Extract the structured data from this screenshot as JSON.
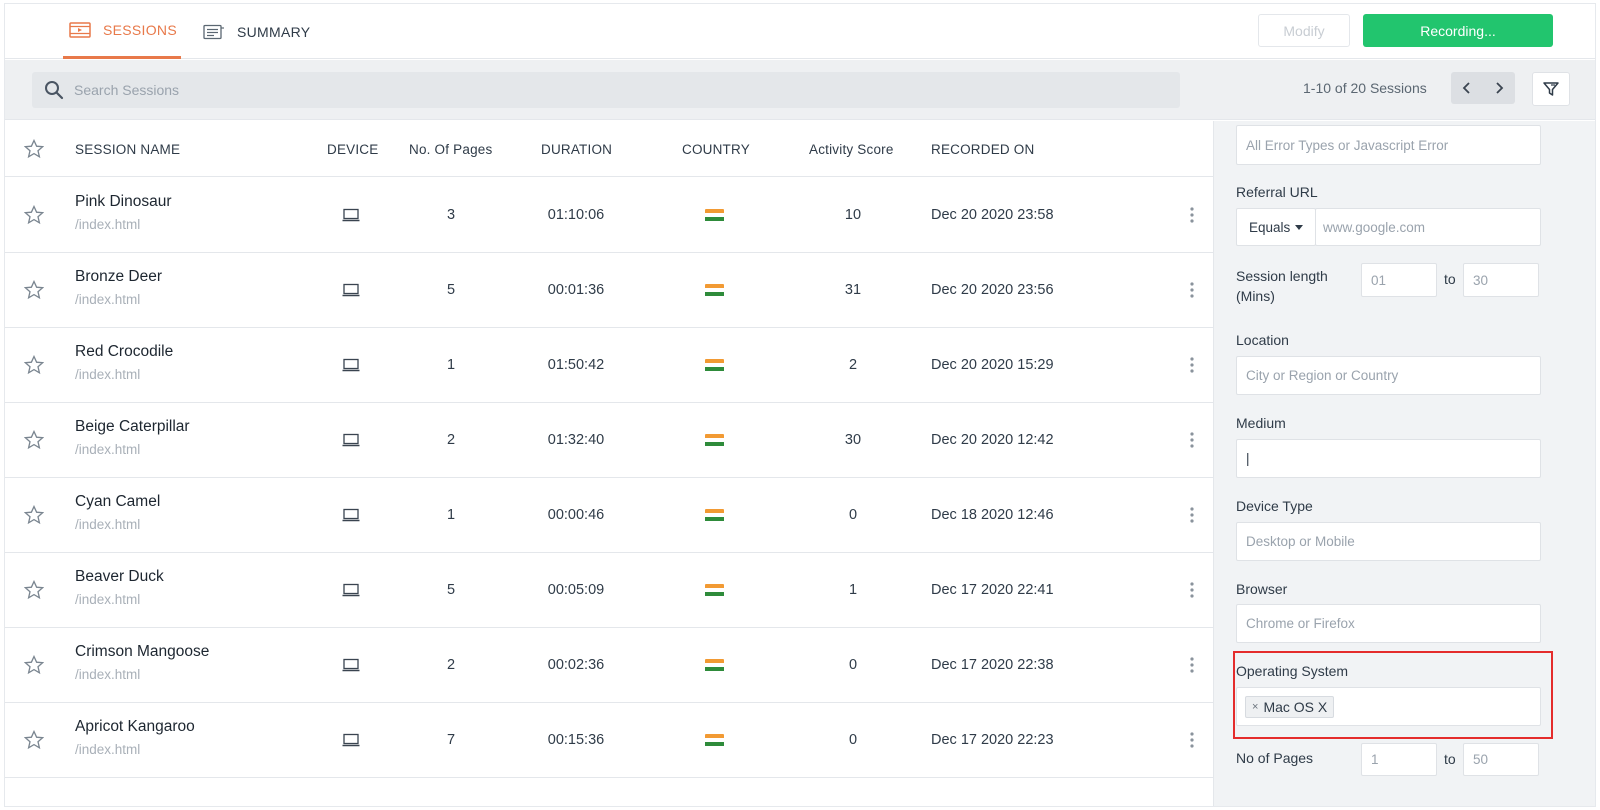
{
  "nav": {
    "tabs": [
      {
        "label": "SESSIONS",
        "icon": "video-icon",
        "active": true
      },
      {
        "label": "SUMMARY",
        "icon": "list-icon",
        "active": false
      }
    ],
    "modify_label": "Modify",
    "record_label": "Recording..."
  },
  "search": {
    "placeholder": "Search Sessions",
    "pager_text": "1-10 of 20 Sessions"
  },
  "table": {
    "columns": [
      "SESSION NAME",
      "DEVICE",
      "No. Of Pages",
      "DURATION",
      "COUNTRY",
      "Activity Score",
      "RECORDED ON"
    ],
    "rows": [
      {
        "name": "Pink Dinosaur",
        "path": "/index.html",
        "device": "desktop-icon",
        "pages": "3",
        "duration": "01:10:06",
        "country": "india-flag",
        "score": "10",
        "recorded": "Dec 20 2020 23:58"
      },
      {
        "name": "Bronze Deer",
        "path": "/index.html",
        "device": "desktop-icon",
        "pages": "5",
        "duration": "00:01:36",
        "country": "india-flag",
        "score": "31",
        "recorded": "Dec 20 2020 23:56"
      },
      {
        "name": "Red Crocodile",
        "path": "/index.html",
        "device": "desktop-icon",
        "pages": "1",
        "duration": "01:50:42",
        "country": "india-flag",
        "score": "2",
        "recorded": "Dec 20 2020 15:29"
      },
      {
        "name": "Beige Caterpillar",
        "path": "/index.html",
        "device": "desktop-icon",
        "pages": "2",
        "duration": "01:32:40",
        "country": "india-flag",
        "score": "30",
        "recorded": "Dec 20 2020 12:42"
      },
      {
        "name": "Cyan Camel",
        "path": "/index.html",
        "device": "desktop-icon",
        "pages": "1",
        "duration": "00:00:46",
        "country": "india-flag",
        "score": "0",
        "recorded": "Dec 18 2020 12:46"
      },
      {
        "name": "Beaver Duck",
        "path": "/index.html",
        "device": "desktop-icon",
        "pages": "5",
        "duration": "00:05:09",
        "country": "india-flag",
        "score": "1",
        "recorded": "Dec 17 2020 22:41"
      },
      {
        "name": "Crimson Mangoose",
        "path": "/index.html",
        "device": "desktop-icon",
        "pages": "2",
        "duration": "00:02:36",
        "country": "india-flag",
        "score": "0",
        "recorded": "Dec 17 2020 22:38"
      },
      {
        "name": "Apricot Kangaroo",
        "path": "/index.html",
        "device": "desktop-icon",
        "pages": "7",
        "duration": "00:15:36",
        "country": "india-flag",
        "score": "0",
        "recorded": "Dec 17 2020 22:23"
      }
    ]
  },
  "filters": {
    "error_placeholder": "All Error Types or Javascript Error",
    "referral_label": "Referral URL",
    "referral_operator": "Equals",
    "referral_placeholder": "www.google.com",
    "session_length_label_1": "Session length",
    "session_length_label_2": "(Mins)",
    "session_min": "01",
    "session_max": "30",
    "to_label": "to",
    "location_label": "Location",
    "location_placeholder": "City or Region or Country",
    "medium_label": "Medium",
    "medium_value": "|",
    "device_label": "Device Type",
    "device_placeholder": "Desktop or Mobile",
    "browser_label": "Browser",
    "browser_placeholder": "Chrome or Firefox",
    "os_label": "Operating System",
    "os_tag": "Mac OS X",
    "os_tag_remove": "×",
    "pages_label": "No of Pages",
    "pages_min": "1",
    "pages_max": "50"
  },
  "colors": {
    "accent": "#e8794a",
    "record_green": "#22c56e",
    "highlight_red": "#e42c2c",
    "flag_saffron": "#f29a33",
    "flag_green": "#2e8b3a"
  }
}
